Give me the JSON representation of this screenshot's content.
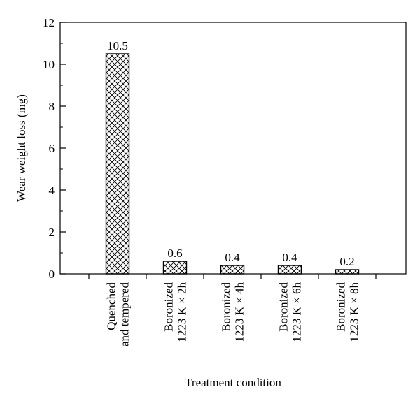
{
  "chart_data": {
    "type": "bar",
    "title": "",
    "xlabel": "Treatment condition",
    "ylabel": "Wear weight loss (mg)",
    "ylim": [
      0,
      12
    ],
    "yticks": [
      "0",
      "2",
      "4",
      "6",
      "8",
      "10",
      "12"
    ],
    "grid": false,
    "legend": "none",
    "categories": [
      [
        "Quenched",
        "and tempered"
      ],
      [
        "Boronized",
        "1223 K × 2h"
      ],
      [
        "Boronized",
        "1223 K × 4h"
      ],
      [
        "Boronized",
        "1223 K × 6h"
      ],
      [
        "Boronized",
        "1223 K × 8h"
      ]
    ],
    "values": [
      10.5,
      0.6,
      0.4,
      0.4,
      0.2
    ],
    "data_labels": [
      "10.5",
      "0.6",
      "0.4",
      "0.4",
      "0.2"
    ],
    "bar_fill": "crosshatch",
    "colors": {
      "bar_stroke": "#000000",
      "hatch": "#000000",
      "background": "#ffffff"
    }
  }
}
